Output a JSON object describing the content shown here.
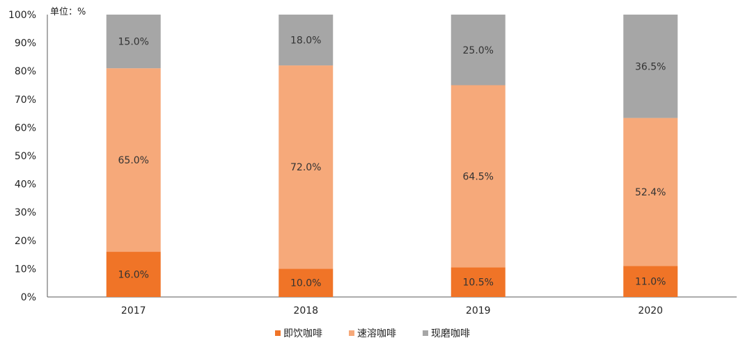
{
  "chart_data": {
    "type": "bar",
    "stacked": true,
    "unit_label": "单位：%",
    "categories": [
      "2017",
      "2018",
      "2019",
      "2020"
    ],
    "series": [
      {
        "name": "即饮咖啡",
        "color": "#F07427",
        "values": [
          16.0,
          10.0,
          10.5,
          11.0
        ],
        "labels": [
          "16.0%",
          "10.0%",
          "10.5%",
          "11.0%"
        ]
      },
      {
        "name": "速溶咖啡",
        "color": "#F6A97A",
        "values": [
          65.0,
          72.0,
          64.5,
          52.4
        ],
        "labels": [
          "65.0%",
          "72.0%",
          "64.5%",
          "52.4%"
        ]
      },
      {
        "name": "现磨咖啡",
        "color": "#A6A6A6",
        "values": [
          15.0,
          18.0,
          25.0,
          36.5
        ],
        "labels": [
          "15.0%",
          "18.0%",
          "25.0%",
          "36.5%"
        ]
      }
    ],
    "ylim": [
      0,
      100
    ],
    "yticks": [
      "0%",
      "10%",
      "20%",
      "30%",
      "40%",
      "50%",
      "60%",
      "70%",
      "80%",
      "90%",
      "100%"
    ],
    "legend_position": "bottom",
    "grid": false
  }
}
